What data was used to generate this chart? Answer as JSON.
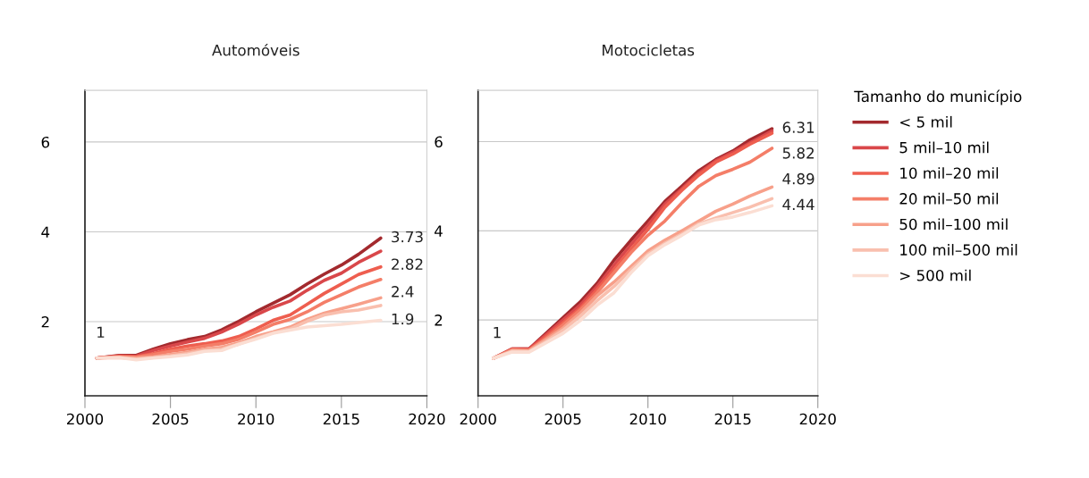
{
  "chart_data": [
    {
      "type": "line",
      "title": "Automóveis",
      "x": [
        2000.7,
        2002,
        2003,
        2004,
        2005,
        2006,
        2007,
        2008,
        2009,
        2010,
        2011,
        2012,
        2013,
        2014,
        2015,
        2016,
        2017.3
      ],
      "xlim": [
        2000,
        2020
      ],
      "xticks": [
        2000,
        2005,
        2010,
        2015,
        2020
      ],
      "ylim": [
        0.35,
        7.15
      ],
      "yticks": [
        2,
        4,
        6
      ],
      "grid": "y",
      "series": [
        {
          "color": "#a32a2e",
          "values": [
            1.19,
            1.25,
            1.25,
            1.39,
            1.51,
            1.6,
            1.67,
            1.82,
            2.01,
            2.22,
            2.41,
            2.6,
            2.84,
            3.06,
            3.26,
            3.5,
            3.86
          ]
        },
        {
          "color": "#d9474a",
          "values": [
            1.19,
            1.24,
            1.23,
            1.36,
            1.46,
            1.55,
            1.63,
            1.77,
            1.95,
            2.15,
            2.32,
            2.46,
            2.7,
            2.92,
            3.08,
            3.32,
            3.57
          ]
        },
        {
          "color": "#ee5e4f",
          "values": [
            1.19,
            1.23,
            1.22,
            1.29,
            1.39,
            1.46,
            1.51,
            1.57,
            1.67,
            1.84,
            2.03,
            2.15,
            2.39,
            2.63,
            2.84,
            3.05,
            3.22
          ]
        },
        {
          "color": "#f47e68",
          "values": [
            1.19,
            1.22,
            1.21,
            1.27,
            1.34,
            1.39,
            1.46,
            1.51,
            1.61,
            1.77,
            1.94,
            2.05,
            2.22,
            2.43,
            2.6,
            2.77,
            2.94
          ]
        },
        {
          "color": "#f7a08a",
          "values": [
            1.19,
            1.21,
            1.19,
            1.22,
            1.27,
            1.32,
            1.39,
            1.43,
            1.53,
            1.67,
            1.77,
            1.88,
            2.05,
            2.19,
            2.29,
            2.39,
            2.53
          ]
        },
        {
          "color": "#f9bfae",
          "values": [
            1.19,
            1.2,
            1.17,
            1.2,
            1.24,
            1.29,
            1.36,
            1.39,
            1.5,
            1.63,
            1.75,
            1.84,
            2.01,
            2.15,
            2.22,
            2.26,
            2.36
          ]
        },
        {
          "color": "#fbded3",
          "values": [
            1.19,
            1.2,
            1.15,
            1.19,
            1.22,
            1.26,
            1.34,
            1.36,
            1.5,
            1.61,
            1.74,
            1.81,
            1.88,
            1.91,
            1.94,
            1.98,
            2.03
          ]
        }
      ],
      "annotations": [
        "1",
        "3.73",
        "2.82",
        "2.4",
        "1.9"
      ]
    },
    {
      "type": "line",
      "title": "Motocicletas",
      "x": [
        2000.9,
        2002,
        2003,
        2004,
        2005,
        2006,
        2007,
        2008,
        2009,
        2010,
        2011,
        2012,
        2013,
        2014,
        2015,
        2016,
        2017.3
      ],
      "xlim": [
        2000,
        2020
      ],
      "xticks": [
        2000,
        2005,
        2010,
        2015,
        2020
      ],
      "ylim": [
        0.3,
        7.15
      ],
      "yticks": [
        2,
        4,
        6
      ],
      "grid": "y",
      "legend": "right",
      "legend_title": "Tamanho do município",
      "series": [
        {
          "name": "< 5 mil",
          "color": "#a32a2e",
          "values": [
            1.14,
            1.35,
            1.35,
            1.7,
            2.05,
            2.4,
            2.82,
            3.34,
            3.79,
            4.22,
            4.66,
            5.0,
            5.35,
            5.6,
            5.79,
            6.04,
            6.29
          ]
        },
        {
          "name": "5 mil–10 mil",
          "color": "#d9474a",
          "values": [
            1.14,
            1.35,
            1.35,
            1.67,
            2.0,
            2.33,
            2.75,
            3.23,
            3.69,
            4.13,
            4.6,
            4.94,
            5.29,
            5.57,
            5.76,
            5.97,
            6.24
          ]
        },
        {
          "name": "10 mil–20 mil",
          "color": "#ee5e4f",
          "values": [
            1.14,
            1.34,
            1.33,
            1.63,
            1.94,
            2.26,
            2.68,
            3.13,
            3.59,
            4.03,
            4.53,
            4.91,
            5.25,
            5.54,
            5.72,
            5.94,
            6.19
          ]
        },
        {
          "name": "20 mil–50 mil",
          "color": "#f47e68",
          "values": [
            1.14,
            1.33,
            1.32,
            1.59,
            1.89,
            2.22,
            2.61,
            3.06,
            3.51,
            3.9,
            4.22,
            4.63,
            5.0,
            5.24,
            5.38,
            5.54,
            5.85
          ]
        },
        {
          "name": "50 mil–100 mil",
          "color": "#f7a08a",
          "values": [
            1.14,
            1.32,
            1.31,
            1.56,
            1.82,
            2.15,
            2.54,
            2.85,
            3.2,
            3.55,
            3.79,
            4.0,
            4.22,
            4.44,
            4.6,
            4.78,
            4.98
          ]
        },
        {
          "name": "100 mil–500 mil",
          "color": "#f9bfae",
          "values": [
            1.14,
            1.3,
            1.29,
            1.52,
            1.77,
            2.08,
            2.43,
            2.75,
            3.13,
            3.48,
            3.72,
            3.93,
            4.16,
            4.29,
            4.41,
            4.53,
            4.72
          ]
        },
        {
          "name": "> 500 mil",
          "color": "#fbded3",
          "values": [
            1.14,
            1.28,
            1.28,
            1.49,
            1.7,
            1.98,
            2.33,
            2.61,
            3.06,
            3.44,
            3.69,
            3.9,
            4.13,
            4.25,
            4.31,
            4.41,
            4.56
          ]
        }
      ],
      "annotations": [
        "1",
        "6.31",
        "5.82",
        "4.89",
        "4.44"
      ]
    }
  ]
}
